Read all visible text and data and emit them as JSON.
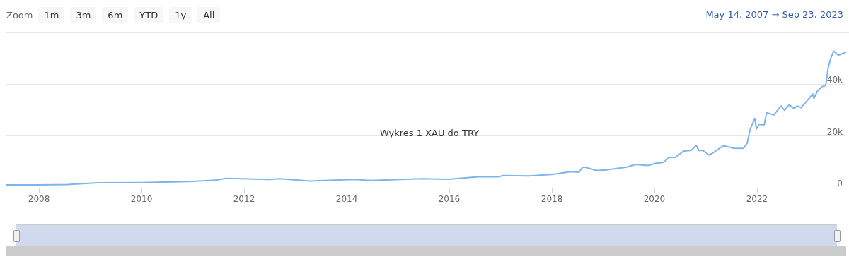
{
  "chart_data": {
    "type": "line",
    "title": "Wykres 1 XAU do TRY",
    "annotations": [
      "Zoom",
      "1m",
      "3m",
      "6m",
      "YTD",
      "1y",
      "All",
      "May 14, 2007 → Sep 23, 2023"
    ],
    "x": [
      "2007-05-14",
      "2008-01-01",
      "2008-07-24",
      "2009-02-24",
      "2010-01-01",
      "2010-12-05",
      "2011-06-13",
      "2011-08-25",
      "2012-07-01",
      "2012-09-12",
      "2013-04-16",
      "2014-02-21",
      "2014-06-21",
      "2015-06-18",
      "2015-12-24",
      "2016-07-27",
      "2016-12-20",
      "2017-01-15",
      "2017-07-20",
      "2018-01-01",
      "2018-05-15",
      "2018-07-13",
      "2018-08-08",
      "2018-08-26",
      "2018-11-14",
      "2019-01-23",
      "2019-06-21",
      "2019-08-18",
      "2019-11-17",
      "2020-01-08",
      "2020-03-07",
      "2020-04-16",
      "2020-05-30",
      "2020-07-27",
      "2020-09-16",
      "2020-10-26",
      "2020-11-13",
      "2020-12-12",
      "2021-01-26",
      "2021-02-28",
      "2021-05-05",
      "2021-07-20",
      "2021-09-27",
      "2021-10-23",
      "2021-11-14",
      "2021-12-16",
      "2021-12-28",
      "2022-01-15",
      "2022-02-21",
      "2022-03-11",
      "2022-05-01",
      "2022-06-21",
      "2022-07-16",
      "2022-08-18",
      "2022-09-20",
      "2022-10-16",
      "2022-11-10",
      "2022-12-20",
      "2023-02-02",
      "2023-02-10",
      "2023-03-07",
      "2023-04-09",
      "2023-05-05",
      "2023-05-23",
      "2023-06-10",
      "2023-07-01",
      "2023-08-04",
      "2023-09-23"
    ],
    "series": [
      {
        "color": "#7cb5ec",
        "values": [
          1100,
          1100,
          1200,
          1900,
          2000,
          2400,
          2900,
          3600,
          3200,
          3500,
          2600,
          3200,
          2800,
          3500,
          3300,
          4200,
          4200,
          4700,
          4600,
          5100,
          6200,
          6000,
          7900,
          7900,
          6700,
          6900,
          8000,
          9000,
          8600,
          9400,
          9800,
          11700,
          11700,
          14200,
          14400,
          16200,
          14400,
          14400,
          12600,
          13700,
          16200,
          15300,
          15200,
          17200,
          22700,
          26800,
          22700,
          24500,
          24300,
          29000,
          28100,
          31600,
          29900,
          32000,
          30700,
          31600,
          30900,
          33400,
          36200,
          34500,
          37300,
          39100,
          39500,
          46400,
          50000,
          52800,
          51200,
          52300
        ]
      }
    ],
    "xlim": [
      "2007-05-14",
      "2023-09-23"
    ],
    "xticks": [
      "2008",
      "2010",
      "2012",
      "2014",
      "2016",
      "2018",
      "2020",
      "2022"
    ],
    "ylim": [
      0,
      60000
    ],
    "yticks": [
      {
        "value": 0,
        "label": "0"
      },
      {
        "value": 20000,
        "label": "20k"
      },
      {
        "value": 40000,
        "label": "40k"
      }
    ],
    "grid": "y",
    "marker": "none",
    "line_style": "solid"
  }
}
